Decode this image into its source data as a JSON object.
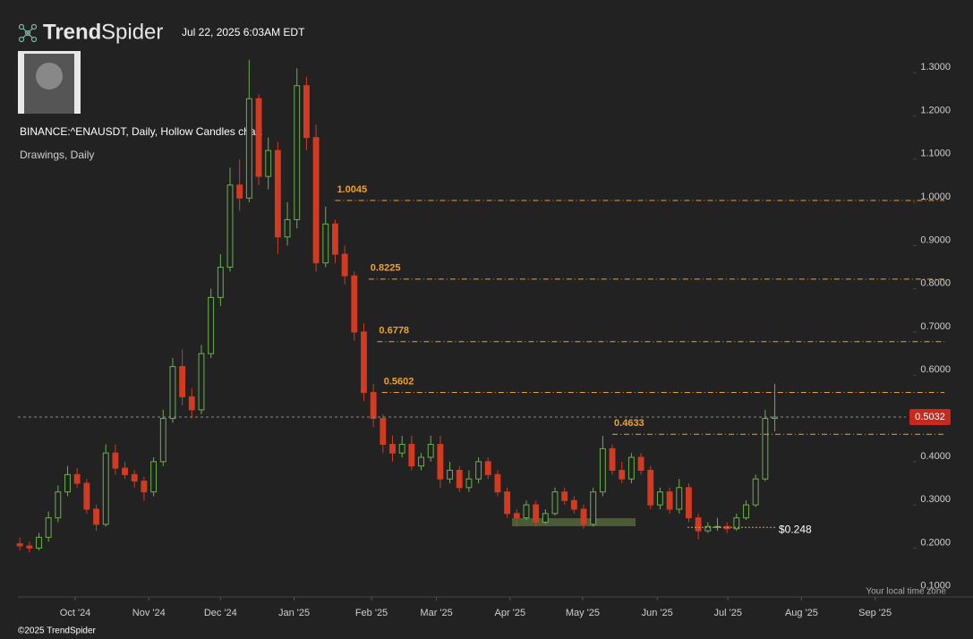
{
  "header": {
    "brand_bold": "Trend",
    "brand_light": "Spider",
    "timestamp": "Jul 22, 2025 6:03AM EDT"
  },
  "footer": "©2025 TrendSpider",
  "chart_data": {
    "type": "candlestick",
    "title": "BINANCE:^ENAUSDT, Daily, Hollow Candles chart",
    "subtitle": "Drawings, Daily",
    "timezone_note": "Your local time zone",
    "open": [
      0.21,
      0.205,
      0.2,
      0.225,
      0.27,
      0.33,
      0.37,
      0.35,
      0.29,
      0.255,
      0.42,
      0.385,
      0.37,
      0.355,
      0.33,
      0.4,
      0.5,
      0.62,
      0.55,
      0.52,
      0.65,
      0.78,
      0.85,
      1.04,
      1.01,
      1.24,
      1.06,
      1.12,
      0.92,
      0.96,
      1.27,
      1.15,
      0.86,
      0.95,
      0.88,
      0.83,
      0.7,
      0.56,
      0.5,
      0.44,
      0.42,
      0.44,
      0.39,
      0.41,
      0.44,
      0.36,
      0.38,
      0.34,
      0.36,
      0.4,
      0.37,
      0.33,
      0.28,
      0.27,
      0.3,
      0.26,
      0.28,
      0.33,
      0.31,
      0.29,
      0.255,
      0.33,
      0.43,
      0.38,
      0.36,
      0.41,
      0.38,
      0.3,
      0.33,
      0.29,
      0.34,
      0.27,
      0.24,
      0.25,
      0.25,
      0.245,
      0.27,
      0.3,
      0.36,
      0.5
    ],
    "high": [
      0.225,
      0.215,
      0.235,
      0.285,
      0.345,
      0.39,
      0.385,
      0.36,
      0.3,
      0.44,
      0.44,
      0.4,
      0.38,
      0.365,
      0.41,
      0.52,
      0.64,
      0.66,
      0.57,
      0.67,
      0.8,
      0.88,
      1.08,
      1.1,
      1.33,
      1.25,
      1.15,
      1.14,
      1.0,
      1.31,
      1.29,
      1.18,
      0.99,
      0.96,
      0.9,
      0.84,
      0.72,
      0.58,
      0.51,
      0.46,
      0.46,
      0.46,
      0.42,
      0.46,
      0.46,
      0.4,
      0.39,
      0.38,
      0.41,
      0.41,
      0.38,
      0.34,
      0.29,
      0.31,
      0.31,
      0.29,
      0.34,
      0.34,
      0.32,
      0.3,
      0.34,
      0.46,
      0.44,
      0.4,
      0.42,
      0.42,
      0.39,
      0.34,
      0.34,
      0.36,
      0.35,
      0.28,
      0.26,
      0.27,
      0.26,
      0.28,
      0.31,
      0.37,
      0.52,
      0.58
    ],
    "low": [
      0.195,
      0.19,
      0.195,
      0.215,
      0.26,
      0.32,
      0.34,
      0.28,
      0.24,
      0.25,
      0.37,
      0.36,
      0.34,
      0.31,
      0.32,
      0.39,
      0.49,
      0.53,
      0.5,
      0.51,
      0.64,
      0.76,
      0.84,
      0.98,
      1.0,
      1.04,
      1.03,
      0.88,
      0.9,
      0.94,
      1.12,
      0.84,
      0.85,
      0.86,
      0.81,
      0.68,
      0.54,
      0.48,
      0.42,
      0.4,
      0.41,
      0.38,
      0.38,
      0.4,
      0.34,
      0.35,
      0.33,
      0.33,
      0.35,
      0.36,
      0.32,
      0.27,
      0.25,
      0.265,
      0.25,
      0.255,
      0.275,
      0.3,
      0.28,
      0.245,
      0.25,
      0.32,
      0.37,
      0.35,
      0.35,
      0.37,
      0.29,
      0.29,
      0.28,
      0.28,
      0.26,
      0.22,
      0.235,
      0.24,
      0.235,
      0.24,
      0.265,
      0.295,
      0.355,
      0.47
    ],
    "close": [
      0.205,
      0.2,
      0.225,
      0.27,
      0.33,
      0.37,
      0.35,
      0.29,
      0.255,
      0.42,
      0.385,
      0.37,
      0.355,
      0.33,
      0.4,
      0.5,
      0.62,
      0.55,
      0.52,
      0.65,
      0.78,
      0.85,
      1.04,
      1.01,
      1.24,
      1.06,
      1.12,
      0.92,
      0.96,
      1.27,
      1.15,
      0.86,
      0.95,
      0.88,
      0.83,
      0.7,
      0.56,
      0.5,
      0.44,
      0.42,
      0.44,
      0.39,
      0.41,
      0.44,
      0.36,
      0.38,
      0.34,
      0.36,
      0.4,
      0.37,
      0.33,
      0.28,
      0.27,
      0.3,
      0.26,
      0.28,
      0.33,
      0.31,
      0.29,
      0.255,
      0.33,
      0.43,
      0.38,
      0.36,
      0.41,
      0.38,
      0.3,
      0.33,
      0.29,
      0.34,
      0.27,
      0.24,
      0.25,
      0.25,
      0.245,
      0.27,
      0.3,
      0.36,
      0.5,
      0.5032
    ],
    "ylim": [
      0.087,
      1.344
    ],
    "yticks": [
      {
        "value": 1.3,
        "label": "1.3000"
      },
      {
        "value": 1.2,
        "label": "1.2000"
      },
      {
        "value": 1.1,
        "label": "1.1000"
      },
      {
        "value": 1.0,
        "label": "1.0000"
      },
      {
        "value": 0.9,
        "label": "0.9000"
      },
      {
        "value": 0.8,
        "label": "0.8000"
      },
      {
        "value": 0.7,
        "label": "0.7000"
      },
      {
        "value": 0.6,
        "label": "0.6000"
      },
      {
        "value": 0.5,
        "label": "0.5000"
      },
      {
        "value": 0.4,
        "label": "0.4000"
      },
      {
        "value": 0.3,
        "label": "0.3000"
      },
      {
        "value": 0.2,
        "label": "0.2000"
      },
      {
        "value": 0.1,
        "label": "0.1000"
      }
    ],
    "xlim": [
      -0.2,
      93
    ],
    "xticks": [
      {
        "value": 5.8,
        "label": "Oct '24"
      },
      {
        "value": 13.5,
        "label": "Nov '24"
      },
      {
        "value": 21.0,
        "label": "Dec '24"
      },
      {
        "value": 28.7,
        "label": "Jan '25"
      },
      {
        "value": 36.8,
        "label": "Feb '25"
      },
      {
        "value": 43.6,
        "label": "Mar '25"
      },
      {
        "value": 51.3,
        "label": "Apr '25"
      },
      {
        "value": 58.9,
        "label": "May '25"
      },
      {
        "value": 66.7,
        "label": "Jun '25"
      },
      {
        "value": 74.1,
        "label": "Jul '25"
      },
      {
        "value": 81.8,
        "label": "Aug '25"
      },
      {
        "value": 89.5,
        "label": "Sep '25"
      }
    ],
    "levels": [
      1.0045,
      0.8225,
      0.6778,
      0.5602,
      0.4633
    ],
    "support": {
      "value": 0.248,
      "label": "$0.248"
    },
    "last_price": 0.5032,
    "colors": {
      "up": "#6ab04c",
      "down": "#d23a22",
      "level": "#f0a02e",
      "badge": "#c8281e"
    }
  }
}
